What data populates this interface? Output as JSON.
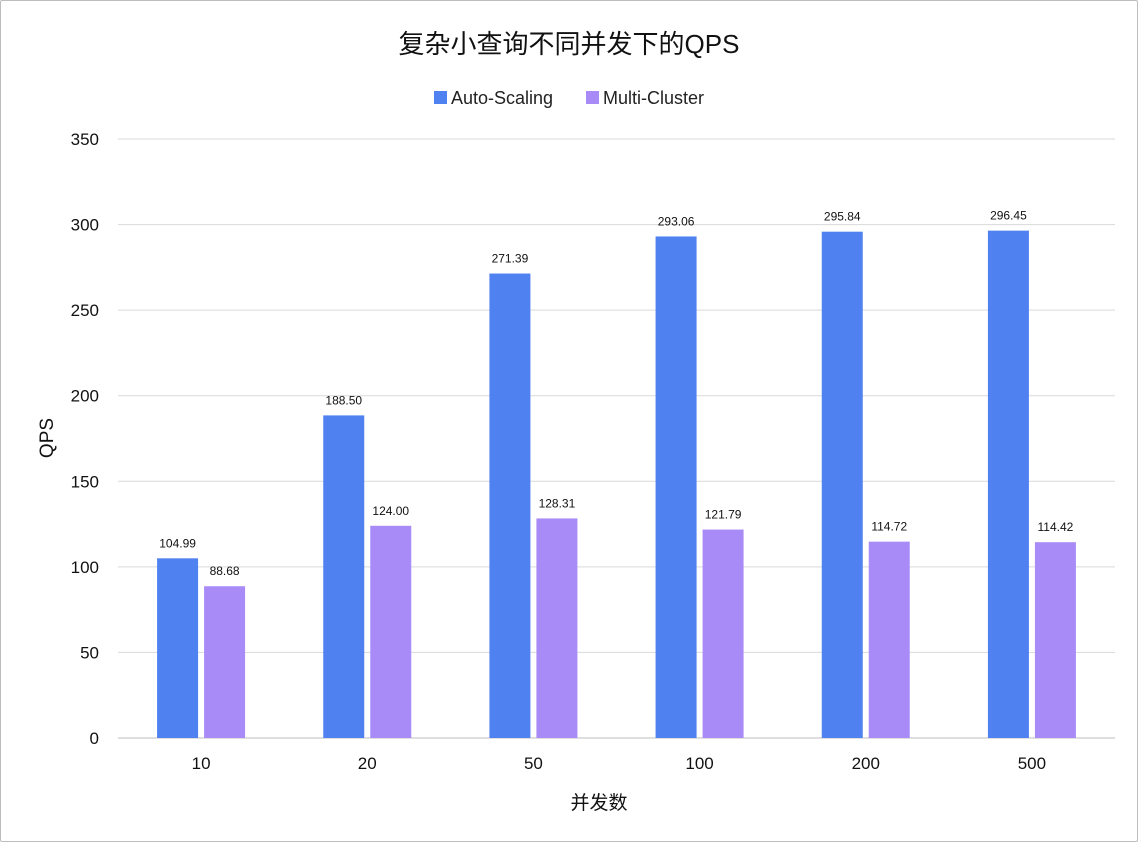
{
  "chart_data": {
    "type": "bar",
    "title": "复杂小查询不同并发下的QPS",
    "xlabel": "并发数",
    "ylabel": "QPS",
    "categories": [
      "10",
      "20",
      "50",
      "100",
      "200",
      "500"
    ],
    "series": [
      {
        "name": "Auto-Scaling",
        "color": "#4F81F0",
        "values": [
          104.99,
          188.5,
          271.39,
          293.06,
          295.84,
          296.45
        ],
        "labels": [
          "104.99",
          "188.50",
          "271.39",
          "293.06",
          "295.84",
          "296.45"
        ]
      },
      {
        "name": "Multi-Cluster",
        "color": "#A98BF7",
        "values": [
          88.68,
          124.0,
          128.31,
          121.79,
          114.72,
          114.42
        ],
        "labels": [
          "88.68",
          "124.00",
          "128.31",
          "121.79",
          "114.72",
          "114.42"
        ]
      }
    ],
    "ylim": [
      0,
      350
    ],
    "yticks": [
      0,
      50,
      100,
      150,
      200,
      250,
      300,
      350
    ],
    "grid": true,
    "legend": "top-center"
  },
  "colors": {
    "grid": "#d9d9d9",
    "axis": "#bfbfbf"
  }
}
